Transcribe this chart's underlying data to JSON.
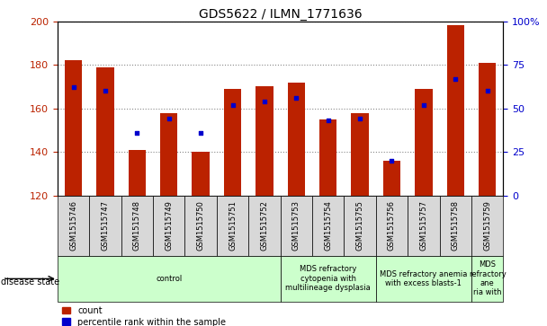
{
  "title": "GDS5622 / ILMN_1771636",
  "samples": [
    "GSM1515746",
    "GSM1515747",
    "GSM1515748",
    "GSM1515749",
    "GSM1515750",
    "GSM1515751",
    "GSM1515752",
    "GSM1515753",
    "GSM1515754",
    "GSM1515755",
    "GSM1515756",
    "GSM1515757",
    "GSM1515758",
    "GSM1515759"
  ],
  "count_values": [
    182,
    179,
    141,
    158,
    140,
    169,
    170,
    172,
    155,
    158,
    136,
    169,
    198,
    181
  ],
  "percentile_values": [
    62,
    60,
    36,
    44,
    36,
    52,
    54,
    56,
    43,
    44,
    20,
    52,
    67,
    60
  ],
  "ylim_left": [
    120,
    200
  ],
  "ylim_right": [
    0,
    100
  ],
  "yticks_left": [
    120,
    140,
    160,
    180,
    200
  ],
  "yticks_right": [
    0,
    25,
    50,
    75,
    100
  ],
  "yticklabels_right": [
    "0",
    "25",
    "50",
    "75",
    "100%"
  ],
  "bar_color": "#bb2200",
  "marker_color": "#0000cc",
  "grid_color": "#888888",
  "disease_groups": [
    {
      "label": "control",
      "start": 0,
      "end": 7
    },
    {
      "label": "MDS refractory\ncytopenia with\nmultilineage dysplasia",
      "start": 7,
      "end": 10
    },
    {
      "label": "MDS refractory anemia\nwith excess blasts-1",
      "start": 10,
      "end": 13
    },
    {
      "label": "MDS\nrefractory\nane\nria with",
      "start": 13,
      "end": 14
    }
  ],
  "disease_state_label": "disease state",
  "legend_count_label": "count",
  "legend_percentile_label": "percentile rank within the sample",
  "title_fontsize": 10,
  "tick_fontsize": 8,
  "sample_fontsize": 6,
  "group_fontsize": 6,
  "legend_fontsize": 7
}
